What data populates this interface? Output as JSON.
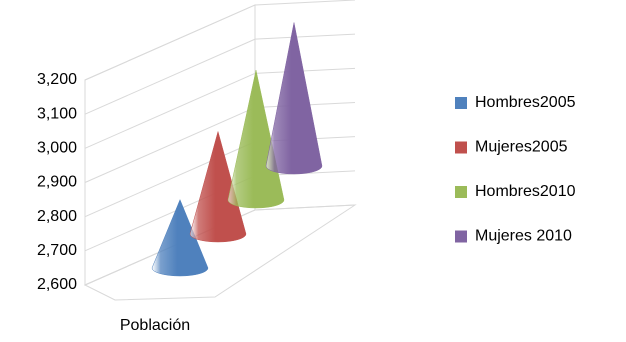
{
  "chart_data": {
    "type": "cone3d",
    "categories": [
      "Población"
    ],
    "series": [
      {
        "name": "Hombres2005",
        "color": "#4f81bd",
        "values": [
          2800
        ]
      },
      {
        "name": "Mujeres2005",
        "color": "#c0504d",
        "values": [
          2900
        ]
      },
      {
        "name": "Hombres2010",
        "color": "#9bbb59",
        "values": [
          2980
        ]
      },
      {
        "name": "Mujeres 2010",
        "color": "#8064a2",
        "values": [
          3020
        ]
      }
    ],
    "ylim": [
      2600,
      3200
    ],
    "yticks": [
      {
        "value": 2600,
        "label": "2,600"
      },
      {
        "value": 2700,
        "label": "2,700"
      },
      {
        "value": 2800,
        "label": "2,800"
      },
      {
        "value": 2900,
        "label": "2,900"
      },
      {
        "value": 3000,
        "label": "3,000"
      },
      {
        "value": 3100,
        "label": "3,100"
      },
      {
        "value": 3200,
        "label": "3,200"
      }
    ],
    "grid": true,
    "legend": "right"
  }
}
